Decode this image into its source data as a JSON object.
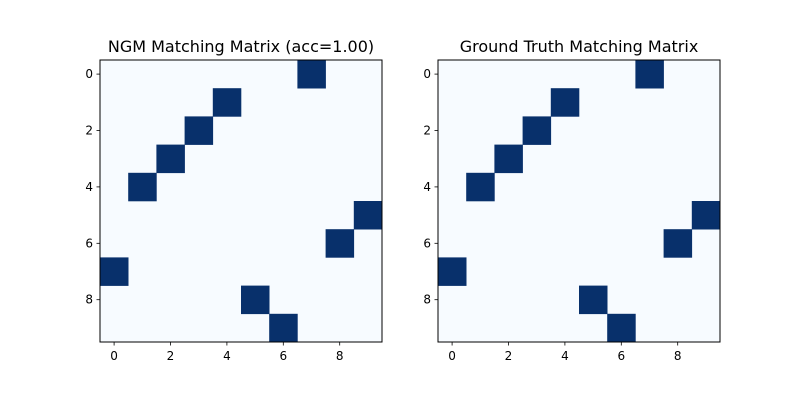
{
  "chart_data": [
    {
      "type": "heatmap",
      "title": "NGM Matching Matrix (acc=1.00)",
      "rows": 10,
      "cols": 10,
      "colormap": "Blues",
      "colors": {
        "low": "#f7fbff",
        "high": "#08306b"
      },
      "xticks": [
        "0",
        "2",
        "4",
        "6",
        "8"
      ],
      "yticks": [
        "0",
        "2",
        "4",
        "6",
        "8"
      ],
      "matrix": [
        [
          0,
          0,
          0,
          0,
          0,
          0,
          0,
          1,
          0,
          0
        ],
        [
          0,
          0,
          0,
          0,
          1,
          0,
          0,
          0,
          0,
          0
        ],
        [
          0,
          0,
          0,
          1,
          0,
          0,
          0,
          0,
          0,
          0
        ],
        [
          0,
          0,
          1,
          0,
          0,
          0,
          0,
          0,
          0,
          0
        ],
        [
          0,
          1,
          0,
          0,
          0,
          0,
          0,
          0,
          0,
          0
        ],
        [
          0,
          0,
          0,
          0,
          0,
          0,
          0,
          0,
          0,
          1
        ],
        [
          0,
          0,
          0,
          0,
          0,
          0,
          0,
          0,
          1,
          0
        ],
        [
          1,
          0,
          0,
          0,
          0,
          0,
          0,
          0,
          0,
          0
        ],
        [
          0,
          0,
          0,
          0,
          0,
          1,
          0,
          0,
          0,
          0
        ],
        [
          0,
          0,
          0,
          0,
          0,
          0,
          1,
          0,
          0,
          0
        ]
      ]
    },
    {
      "type": "heatmap",
      "title": "Ground Truth Matching Matrix",
      "rows": 10,
      "cols": 10,
      "colormap": "Blues",
      "colors": {
        "low": "#f7fbff",
        "high": "#08306b"
      },
      "xticks": [
        "0",
        "2",
        "4",
        "6",
        "8"
      ],
      "yticks": [
        "0",
        "2",
        "4",
        "6",
        "8"
      ],
      "matrix": [
        [
          0,
          0,
          0,
          0,
          0,
          0,
          0,
          1,
          0,
          0
        ],
        [
          0,
          0,
          0,
          0,
          1,
          0,
          0,
          0,
          0,
          0
        ],
        [
          0,
          0,
          0,
          1,
          0,
          0,
          0,
          0,
          0,
          0
        ],
        [
          0,
          0,
          1,
          0,
          0,
          0,
          0,
          0,
          0,
          0
        ],
        [
          0,
          1,
          0,
          0,
          0,
          0,
          0,
          0,
          0,
          0
        ],
        [
          0,
          0,
          0,
          0,
          0,
          0,
          0,
          0,
          0,
          1
        ],
        [
          0,
          0,
          0,
          0,
          0,
          0,
          0,
          0,
          1,
          0
        ],
        [
          1,
          0,
          0,
          0,
          0,
          0,
          0,
          0,
          0,
          0
        ],
        [
          0,
          0,
          0,
          0,
          0,
          1,
          0,
          0,
          0,
          0
        ],
        [
          0,
          0,
          0,
          0,
          0,
          0,
          1,
          0,
          0,
          0
        ]
      ]
    }
  ]
}
